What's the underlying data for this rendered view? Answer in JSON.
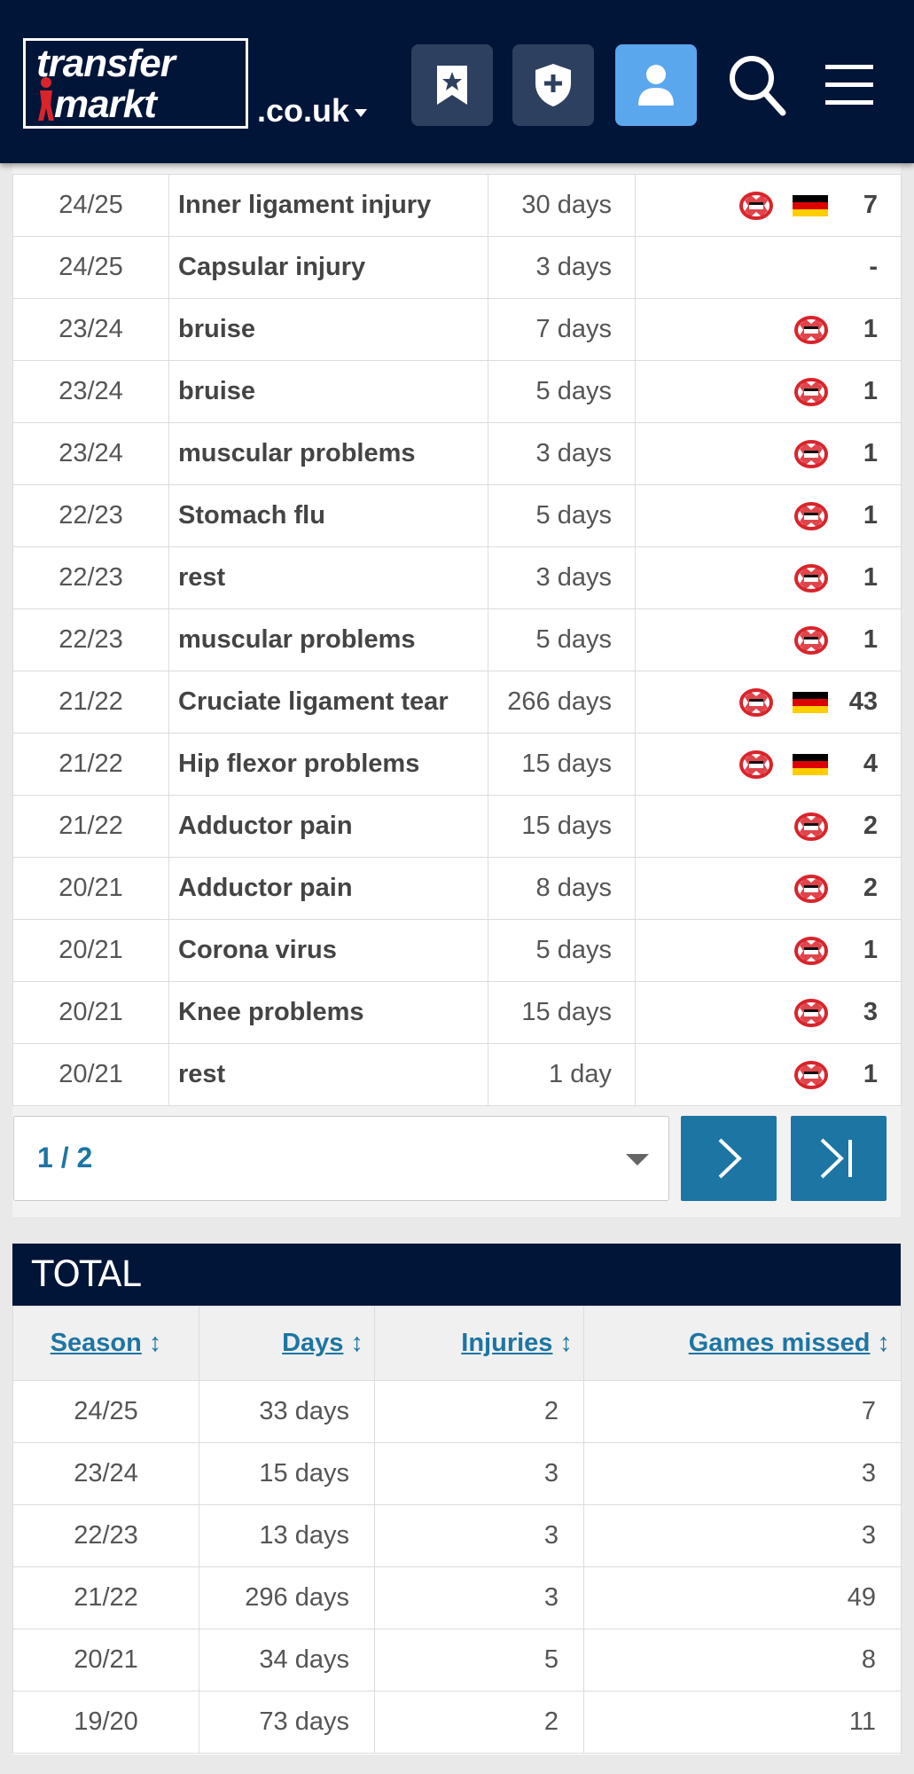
{
  "header": {
    "logo_line1": "transfer",
    "logo_line2": "markt",
    "domain": ".co.uk",
    "icons": [
      "bookmark-star-icon",
      "shield-plus-icon",
      "user-icon",
      "search-icon",
      "menu-icon"
    ],
    "colors": {
      "navy": "#001538",
      "accent_blue": "#5aa7ee",
      "link_blue": "#1d75a3"
    }
  },
  "injuries": {
    "rows": [
      {
        "season": "24/25",
        "injury": "Inner ligament injury",
        "days": "30 days",
        "club": true,
        "country": true,
        "games": "7"
      },
      {
        "season": "24/25",
        "injury": "Capsular injury",
        "days": "3 days",
        "club": false,
        "country": false,
        "games": "-"
      },
      {
        "season": "23/24",
        "injury": "bruise",
        "days": "7 days",
        "club": true,
        "country": false,
        "games": "1"
      },
      {
        "season": "23/24",
        "injury": "bruise",
        "days": "5 days",
        "club": true,
        "country": false,
        "games": "1"
      },
      {
        "season": "23/24",
        "injury": "muscular problems",
        "days": "3 days",
        "club": true,
        "country": false,
        "games": "1"
      },
      {
        "season": "22/23",
        "injury": "Stomach flu",
        "days": "5 days",
        "club": true,
        "country": false,
        "games": "1"
      },
      {
        "season": "22/23",
        "injury": "rest",
        "days": "3 days",
        "club": true,
        "country": false,
        "games": "1"
      },
      {
        "season": "22/23",
        "injury": "muscular problems",
        "days": "5 days",
        "club": true,
        "country": false,
        "games": "1"
      },
      {
        "season": "21/22",
        "injury": "Cruciate ligament tear",
        "days": "266 days",
        "club": true,
        "country": true,
        "games": "43"
      },
      {
        "season": "21/22",
        "injury": "Hip flexor problems",
        "days": "15 days",
        "club": true,
        "country": true,
        "games": "4"
      },
      {
        "season": "21/22",
        "injury": "Adductor pain",
        "days": "15 days",
        "club": true,
        "country": false,
        "games": "2"
      },
      {
        "season": "20/21",
        "injury": "Adductor pain",
        "days": "8 days",
        "club": true,
        "country": false,
        "games": "2"
      },
      {
        "season": "20/21",
        "injury": "Corona virus",
        "days": "5 days",
        "club": true,
        "country": false,
        "games": "1"
      },
      {
        "season": "20/21",
        "injury": "Knee problems",
        "days": "15 days",
        "club": true,
        "country": false,
        "games": "3"
      },
      {
        "season": "20/21",
        "injury": "rest",
        "days": "1 day",
        "club": true,
        "country": false,
        "games": "1"
      }
    ]
  },
  "pagination": {
    "selected": "1 / 2",
    "next_icon": "chevron-right-icon",
    "last_icon": "chevron-last-icon"
  },
  "total": {
    "title": "TOTAL",
    "headers": {
      "season": "Season",
      "days": "Days",
      "injuries": "Injuries",
      "games": "Games missed",
      "sort_glyph": "↕"
    },
    "rows": [
      {
        "season": "24/25",
        "days": "33 days",
        "injuries": "2",
        "games": "7"
      },
      {
        "season": "23/24",
        "days": "15 days",
        "injuries": "3",
        "games": "3"
      },
      {
        "season": "22/23",
        "days": "13 days",
        "injuries": "3",
        "games": "3"
      },
      {
        "season": "21/22",
        "days": "296 days",
        "injuries": "3",
        "games": "49"
      },
      {
        "season": "20/21",
        "days": "34 days",
        "injuries": "5",
        "games": "8"
      },
      {
        "season": "19/20",
        "days": "73 days",
        "injuries": "2",
        "games": "11"
      }
    ]
  }
}
